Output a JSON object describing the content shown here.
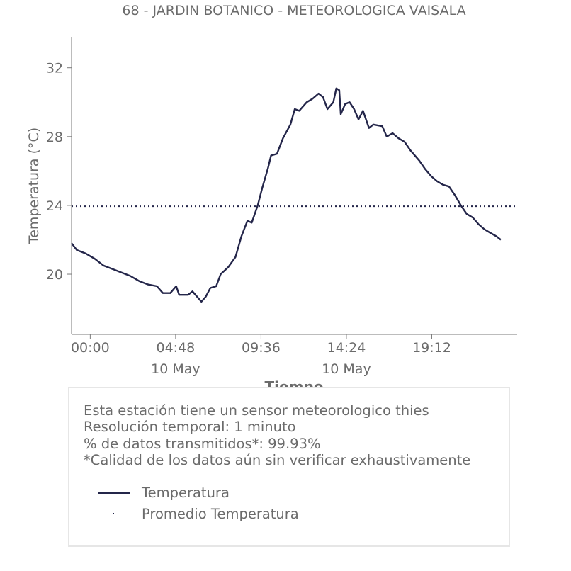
{
  "chart_data": {
    "type": "line",
    "title": "68 - JARDIN BOTANICO - METEOROLOGICA VAISALA",
    "xlabel": "Tiempo",
    "ylabel": "Temperatura (°C)",
    "x_range": [
      "2024-05-09T22:57",
      "2024-05-11T00:00"
    ],
    "ylim": [
      16.5,
      33.8
    ],
    "yticks": [
      20,
      24,
      28,
      32
    ],
    "xticks": [
      {
        "at": "2024-05-10T00:00",
        "label": "00:00",
        "sublabel": ""
      },
      {
        "at": "2024-05-10T04:48",
        "label": "04:48",
        "sublabel": "10 May"
      },
      {
        "at": "2024-05-10T09:36",
        "label": "09:36",
        "sublabel": ""
      },
      {
        "at": "2024-05-10T14:24",
        "label": "14:24",
        "sublabel": "10 May"
      },
      {
        "at": "2024-05-10T19:12",
        "label": "19:12",
        "sublabel": ""
      }
    ],
    "grid": false,
    "series": [
      {
        "name": "Temperatura",
        "style": "solid",
        "color": "#24264a",
        "points": [
          [
            "2024-05-09T22:57",
            21.8
          ],
          [
            "2024-05-09T23:15",
            21.4
          ],
          [
            "2024-05-09T23:45",
            21.2
          ],
          [
            "2024-05-10T00:15",
            20.9
          ],
          [
            "2024-05-10T00:45",
            20.5
          ],
          [
            "2024-05-10T01:15",
            20.3
          ],
          [
            "2024-05-10T01:45",
            20.1
          ],
          [
            "2024-05-10T02:15",
            19.9
          ],
          [
            "2024-05-10T02:45",
            19.6
          ],
          [
            "2024-05-10T03:15",
            19.4
          ],
          [
            "2024-05-10T03:45",
            19.3
          ],
          [
            "2024-05-10T04:05",
            18.9
          ],
          [
            "2024-05-10T04:30",
            18.9
          ],
          [
            "2024-05-10T04:50",
            19.3
          ],
          [
            "2024-05-10T05:00",
            18.8
          ],
          [
            "2024-05-10T05:30",
            18.8
          ],
          [
            "2024-05-10T05:45",
            19.0
          ],
          [
            "2024-05-10T06:05",
            18.6
          ],
          [
            "2024-05-10T06:15",
            18.4
          ],
          [
            "2024-05-10T06:30",
            18.7
          ],
          [
            "2024-05-10T06:45",
            19.2
          ],
          [
            "2024-05-10T07:05",
            19.3
          ],
          [
            "2024-05-10T07:20",
            20.0
          ],
          [
            "2024-05-10T07:45",
            20.4
          ],
          [
            "2024-05-10T08:10",
            21.0
          ],
          [
            "2024-05-10T08:30",
            22.2
          ],
          [
            "2024-05-10T08:50",
            23.1
          ],
          [
            "2024-05-10T09:05",
            23.0
          ],
          [
            "2024-05-10T09:25",
            24.0
          ],
          [
            "2024-05-10T09:40",
            25.0
          ],
          [
            "2024-05-10T10:00",
            26.2
          ],
          [
            "2024-05-10T10:10",
            26.9
          ],
          [
            "2024-05-10T10:30",
            27.0
          ],
          [
            "2024-05-10T10:50",
            27.9
          ],
          [
            "2024-05-10T11:15",
            28.7
          ],
          [
            "2024-05-10T11:30",
            29.6
          ],
          [
            "2024-05-10T11:45",
            29.5
          ],
          [
            "2024-05-10T12:10",
            30.0
          ],
          [
            "2024-05-10T12:30",
            30.2
          ],
          [
            "2024-05-10T12:50",
            30.5
          ],
          [
            "2024-05-10T13:05",
            30.3
          ],
          [
            "2024-05-10T13:20",
            29.6
          ],
          [
            "2024-05-10T13:40",
            30.0
          ],
          [
            "2024-05-10T13:50",
            30.8
          ],
          [
            "2024-05-10T14:00",
            30.7
          ],
          [
            "2024-05-10T14:05",
            29.3
          ],
          [
            "2024-05-10T14:20",
            29.9
          ],
          [
            "2024-05-10T14:35",
            30.0
          ],
          [
            "2024-05-10T14:50",
            29.6
          ],
          [
            "2024-05-10T15:05",
            29.0
          ],
          [
            "2024-05-10T15:20",
            29.5
          ],
          [
            "2024-05-10T15:40",
            28.5
          ],
          [
            "2024-05-10T15:55",
            28.7
          ],
          [
            "2024-05-10T16:25",
            28.6
          ],
          [
            "2024-05-10T16:40",
            28.0
          ],
          [
            "2024-05-10T17:00",
            28.2
          ],
          [
            "2024-05-10T17:20",
            27.9
          ],
          [
            "2024-05-10T17:40",
            27.7
          ],
          [
            "2024-05-10T18:00",
            27.2
          ],
          [
            "2024-05-10T18:30",
            26.6
          ],
          [
            "2024-05-10T18:50",
            26.1
          ],
          [
            "2024-05-10T19:10",
            25.7
          ],
          [
            "2024-05-10T19:30",
            25.4
          ],
          [
            "2024-05-10T19:50",
            25.2
          ],
          [
            "2024-05-10T20:10",
            25.1
          ],
          [
            "2024-05-10T20:30",
            24.6
          ],
          [
            "2024-05-10T20:50",
            24.0
          ],
          [
            "2024-05-10T21:10",
            23.5
          ],
          [
            "2024-05-10T21:30",
            23.3
          ],
          [
            "2024-05-10T21:50",
            22.9
          ],
          [
            "2024-05-10T22:10",
            22.6
          ],
          [
            "2024-05-10T22:30",
            22.4
          ],
          [
            "2024-05-10T22:50",
            22.2
          ],
          [
            "2024-05-10T23:05",
            22.0
          ]
        ]
      },
      {
        "name": "Promedio Temperatura",
        "style": "dotted",
        "color": "#24264a",
        "value": 23.95
      }
    ]
  },
  "info_box": {
    "lines": [
      "Esta estación tiene un sensor meteorologico thies",
      "Resolución temporal: 1 minuto",
      "% de datos transmitidos*: 99.93%",
      "*Calidad de los datos aún sin verificar exhaustivamente"
    ],
    "legend": [
      "Temperatura",
      "Promedio Temperatura"
    ]
  },
  "colors": {
    "series": "#24264a",
    "text": "#6b6b6b",
    "axis": "#7a7a7a",
    "box_border": "#e6e6e6"
  }
}
